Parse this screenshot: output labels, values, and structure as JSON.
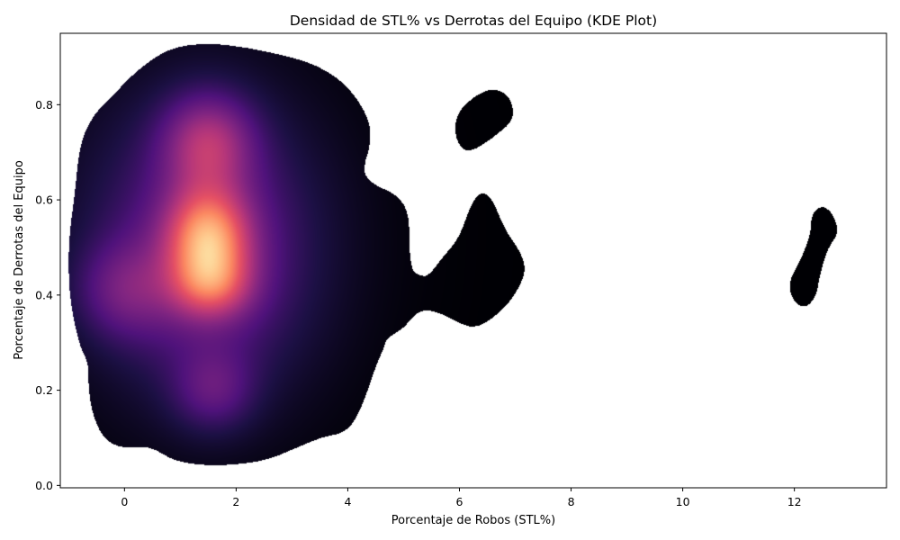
{
  "chart_data": {
    "type": "heatmap",
    "subtype": "kde-2d",
    "colormap": "magma",
    "title": "Densidad de STL% vs Derrotas del Equipo (KDE Plot)",
    "xlabel": "Porcentaje de Robos (STL%)",
    "ylabel": "Porcentaje de Derrotas del Equipo",
    "xlim": [
      -1.15,
      13.65
    ],
    "ylim": [
      -0.005,
      0.95
    ],
    "x_ticks": [
      0,
      2,
      4,
      6,
      8,
      10,
      12
    ],
    "x_tick_labels": [
      "0",
      "2",
      "4",
      "6",
      "8",
      "10",
      "12"
    ],
    "y_ticks": [
      0.0,
      0.2,
      0.4,
      0.6,
      0.8
    ],
    "y_tick_labels": [
      "0.0",
      "0.2",
      "0.4",
      "0.6",
      "0.8"
    ],
    "grid": false,
    "legend": "none",
    "density_peak": {
      "x": 1.5,
      "y": 0.52
    },
    "secondary_peaks": [
      {
        "x": 1.5,
        "y": 0.72
      },
      {
        "x": 1.5,
        "y": 0.2
      },
      {
        "x": 0.0,
        "y": 0.41
      }
    ],
    "outer_contour": [
      [
        -0.9,
        0.6
      ],
      [
        -0.8,
        0.72
      ],
      [
        -0.55,
        0.78
      ],
      [
        -0.2,
        0.82
      ],
      [
        0.2,
        0.87
      ],
      [
        0.8,
        0.92
      ],
      [
        1.5,
        0.93
      ],
      [
        2.2,
        0.92
      ],
      [
        3.0,
        0.9
      ],
      [
        3.5,
        0.88
      ],
      [
        4.0,
        0.84
      ],
      [
        4.4,
        0.77
      ],
      [
        4.4,
        0.71
      ],
      [
        4.3,
        0.68
      ],
      [
        4.3,
        0.65
      ],
      [
        4.5,
        0.63
      ],
      [
        4.9,
        0.61
      ],
      [
        5.1,
        0.57
      ],
      [
        5.1,
        0.5
      ],
      [
        5.15,
        0.45
      ],
      [
        5.3,
        0.44
      ],
      [
        5.45,
        0.44
      ],
      [
        5.7,
        0.48
      ],
      [
        6.0,
        0.52
      ],
      [
        6.2,
        0.59
      ],
      [
        6.4,
        0.62
      ],
      [
        6.6,
        0.6
      ],
      [
        6.8,
        0.54
      ],
      [
        7.1,
        0.49
      ],
      [
        7.2,
        0.45
      ],
      [
        7.0,
        0.4
      ],
      [
        6.7,
        0.36
      ],
      [
        6.3,
        0.33
      ],
      [
        6.0,
        0.34
      ],
      [
        5.7,
        0.36
      ],
      [
        5.4,
        0.37
      ],
      [
        5.2,
        0.36
      ],
      [
        5.0,
        0.33
      ],
      [
        4.7,
        0.31
      ],
      [
        4.65,
        0.29
      ],
      [
        4.5,
        0.25
      ],
      [
        4.3,
        0.18
      ],
      [
        4.1,
        0.13
      ],
      [
        3.9,
        0.11
      ],
      [
        3.5,
        0.1
      ],
      [
        3.1,
        0.08
      ],
      [
        2.5,
        0.05
      ],
      [
        1.6,
        0.04
      ],
      [
        0.9,
        0.05
      ],
      [
        0.5,
        0.08
      ],
      [
        0.2,
        0.08
      ],
      [
        -0.1,
        0.08
      ],
      [
        -0.4,
        0.1
      ],
      [
        -0.6,
        0.16
      ],
      [
        -0.65,
        0.22
      ],
      [
        -0.65,
        0.26
      ],
      [
        -0.8,
        0.29
      ],
      [
        -1.0,
        0.4
      ],
      [
        -1.0,
        0.52
      ]
    ],
    "island_contours": [
      [
        [
          6.2,
          0.7
        ],
        [
          6.6,
          0.73
        ],
        [
          7.0,
          0.77
        ],
        [
          6.9,
          0.82
        ],
        [
          6.6,
          0.835
        ],
        [
          6.3,
          0.82
        ],
        [
          6.0,
          0.79
        ],
        [
          5.9,
          0.75
        ],
        [
          6.0,
          0.71
        ]
      ],
      [
        [
          12.1,
          0.47
        ],
        [
          12.3,
          0.53
        ],
        [
          12.3,
          0.57
        ],
        [
          12.5,
          0.59
        ],
        [
          12.7,
          0.57
        ],
        [
          12.8,
          0.53
        ],
        [
          12.6,
          0.5
        ],
        [
          12.45,
          0.44
        ],
        [
          12.4,
          0.4
        ],
        [
          12.2,
          0.37
        ],
        [
          11.95,
          0.39
        ],
        [
          11.9,
          0.43
        ]
      ]
    ],
    "kernels": [
      {
        "x": 1.5,
        "y": 0.52,
        "sx": 0.5,
        "sy": 0.07,
        "w": 0.55
      },
      {
        "x": 1.55,
        "y": 0.42,
        "sx": 0.5,
        "sy": 0.05,
        "w": 0.32
      },
      {
        "x": 1.5,
        "y": 0.72,
        "sx": 0.55,
        "sy": 0.07,
        "w": 0.32
      },
      {
        "x": 1.5,
        "y": 0.48,
        "sx": 1.3,
        "sy": 0.2,
        "w": 0.22
      },
      {
        "x": 0.0,
        "y": 0.41,
        "sx": 0.6,
        "sy": 0.07,
        "w": 0.18
      },
      {
        "x": 1.6,
        "y": 0.2,
        "sx": 0.5,
        "sy": 0.06,
        "w": 0.17
      },
      {
        "x": 1.2,
        "y": 0.55,
        "sx": 1.8,
        "sy": 0.25,
        "w": 0.08
      }
    ]
  }
}
